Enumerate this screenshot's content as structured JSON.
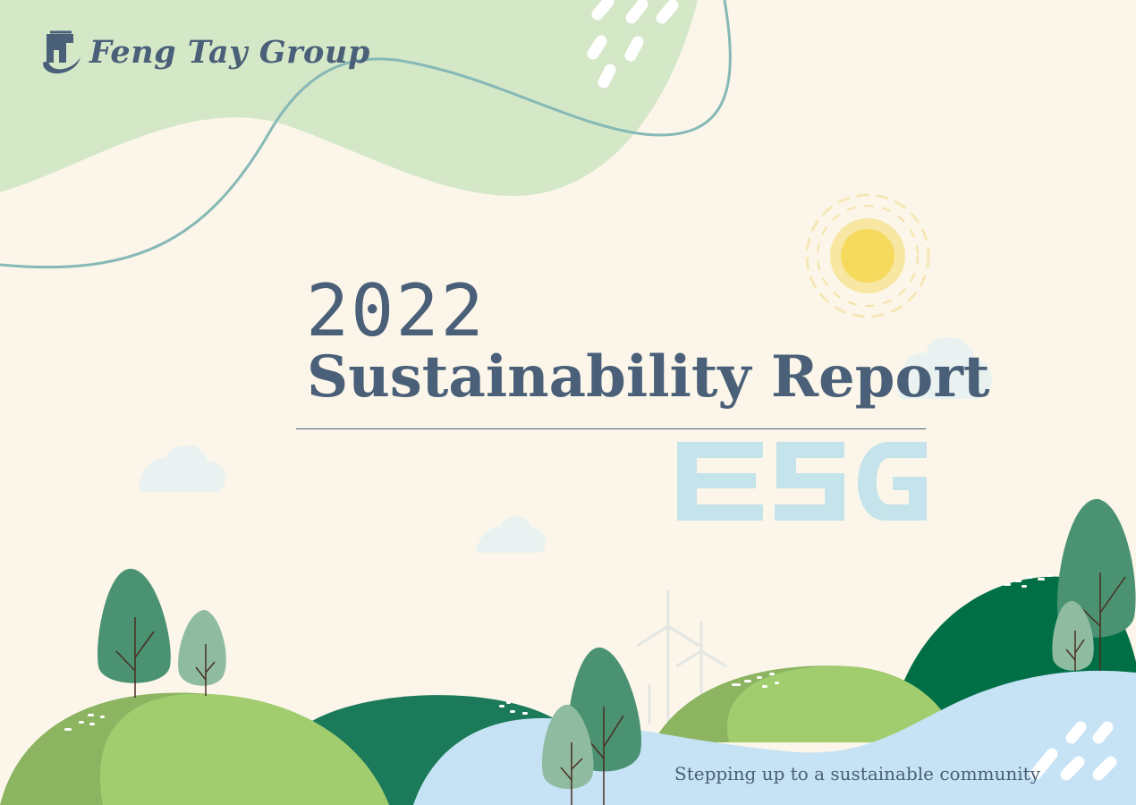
{
  "logo": {
    "name": "Feng Tay Group"
  },
  "cover": {
    "year": "2022",
    "title": "Sustainability Report",
    "watermark": "ESG",
    "tagline": "Stepping up to a sustainable community"
  },
  "colors": {
    "background": "#fbf6e9",
    "text": "#4a5f78",
    "light_green": "#d4e8c8",
    "sky_blue": "#c6e2f5",
    "dark_green": "#1a7a5a",
    "grass_green": "#a1cd6f",
    "sun": "#f6da5d"
  },
  "icons": [
    "logo-icon",
    "sun-icon",
    "cloud-icon",
    "tree-icon",
    "wind-turbine-icon",
    "rain-streaks-icon"
  ]
}
